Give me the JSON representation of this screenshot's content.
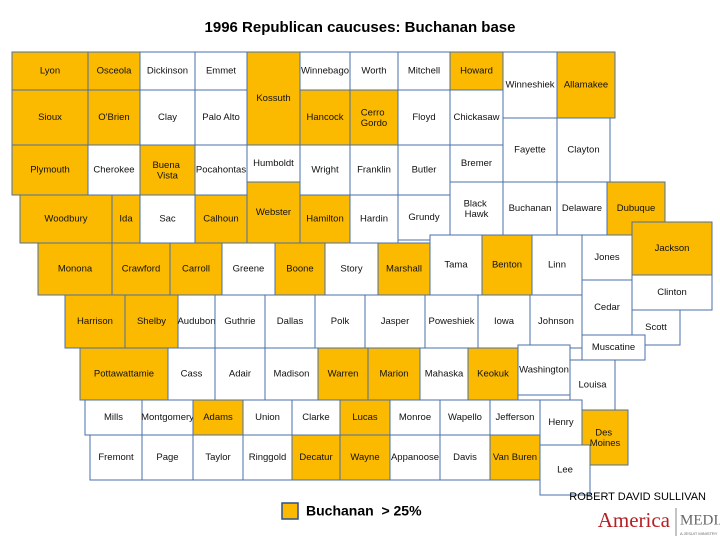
{
  "title": "1996 Republican caucuses: Buchanan base",
  "counties": [
    {
      "name": "Lyon",
      "buchanan": true
    },
    {
      "name": "Osceola",
      "buchanan": true
    },
    {
      "name": "Dickinson",
      "buchanan": false
    },
    {
      "name": "Emmet",
      "buchanan": false
    },
    {
      "name": "Kossuth",
      "buchanan": true
    },
    {
      "name": "Winnebago",
      "buchanan": false
    },
    {
      "name": "Worth",
      "buchanan": false
    },
    {
      "name": "Mitchell",
      "buchanan": false
    },
    {
      "name": "Howard",
      "buchanan": true
    },
    {
      "name": "Winneshiek",
      "buchanan": false
    },
    {
      "name": "Allamakee",
      "buchanan": true
    },
    {
      "name": "Sioux",
      "buchanan": true
    },
    {
      "name": "O'Brien",
      "buchanan": true
    },
    {
      "name": "Clay",
      "buchanan": false
    },
    {
      "name": "Palo Alto",
      "buchanan": false
    },
    {
      "name": "Hancock",
      "buchanan": true
    },
    {
      "name": "Cerro Gordo",
      "buchanan": true
    },
    {
      "name": "Floyd",
      "buchanan": false
    },
    {
      "name": "Chickasaw",
      "buchanan": false
    },
    {
      "name": "Fayette",
      "buchanan": false
    },
    {
      "name": "Clayton",
      "buchanan": false
    },
    {
      "name": "Plymouth",
      "buchanan": true
    },
    {
      "name": "Cherokee",
      "buchanan": false
    },
    {
      "name": "Buena Vista",
      "buchanan": true
    },
    {
      "name": "Pocahontas",
      "buchanan": false
    },
    {
      "name": "Humboldt",
      "buchanan": false
    },
    {
      "name": "Wright",
      "buchanan": false
    },
    {
      "name": "Franklin",
      "buchanan": false
    },
    {
      "name": "Butler",
      "buchanan": false
    },
    {
      "name": "Bremer",
      "buchanan": false
    },
    {
      "name": "Woodbury",
      "buchanan": true
    },
    {
      "name": "Ida",
      "buchanan": true
    },
    {
      "name": "Sac",
      "buchanan": false
    },
    {
      "name": "Calhoun",
      "buchanan": true
    },
    {
      "name": "Webster",
      "buchanan": true
    },
    {
      "name": "Hamilton",
      "buchanan": true
    },
    {
      "name": "Hardin",
      "buchanan": false
    },
    {
      "name": "Grundy",
      "buchanan": false
    },
    {
      "name": "Black Hawk",
      "buchanan": false
    },
    {
      "name": "Buchanan",
      "buchanan": false
    },
    {
      "name": "Delaware",
      "buchanan": false
    },
    {
      "name": "Dubuque",
      "buchanan": true
    },
    {
      "name": "Monona",
      "buchanan": true
    },
    {
      "name": "Crawford",
      "buchanan": true
    },
    {
      "name": "Carroll",
      "buchanan": true
    },
    {
      "name": "Greene",
      "buchanan": false
    },
    {
      "name": "Boone",
      "buchanan": true
    },
    {
      "name": "Story",
      "buchanan": false
    },
    {
      "name": "Marshall",
      "buchanan": true
    },
    {
      "name": "Tama",
      "buchanan": false
    },
    {
      "name": "Benton",
      "buchanan": true
    },
    {
      "name": "Linn",
      "buchanan": false
    },
    {
      "name": "Jones",
      "buchanan": false
    },
    {
      "name": "Jackson",
      "buchanan": true
    },
    {
      "name": "Harrison",
      "buchanan": true
    },
    {
      "name": "Shelby",
      "buchanan": true
    },
    {
      "name": "Audubon",
      "buchanan": false
    },
    {
      "name": "Guthrie",
      "buchanan": false
    },
    {
      "name": "Dallas",
      "buchanan": false
    },
    {
      "name": "Polk",
      "buchanan": false
    },
    {
      "name": "Jasper",
      "buchanan": false
    },
    {
      "name": "Poweshiek",
      "buchanan": false
    },
    {
      "name": "Iowa",
      "buchanan": false
    },
    {
      "name": "Johnson",
      "buchanan": false
    },
    {
      "name": "Cedar",
      "buchanan": false
    },
    {
      "name": "Clinton",
      "buchanan": false
    },
    {
      "name": "Scott",
      "buchanan": false
    },
    {
      "name": "Pottawattamie",
      "buchanan": true
    },
    {
      "name": "Cass",
      "buchanan": false
    },
    {
      "name": "Adair",
      "buchanan": false
    },
    {
      "name": "Madison",
      "buchanan": false
    },
    {
      "name": "Warren",
      "buchanan": true
    },
    {
      "name": "Marion",
      "buchanan": true
    },
    {
      "name": "Mahaska",
      "buchanan": false
    },
    {
      "name": "Keokuk",
      "buchanan": true
    },
    {
      "name": "Washington",
      "buchanan": false
    },
    {
      "name": "Muscatine",
      "buchanan": false
    },
    {
      "name": "Louisa",
      "buchanan": false
    },
    {
      "name": "Mills",
      "buchanan": false
    },
    {
      "name": "Montgomery",
      "buchanan": false
    },
    {
      "name": "Adams",
      "buchanan": true
    },
    {
      "name": "Union",
      "buchanan": false
    },
    {
      "name": "Clarke",
      "buchanan": false
    },
    {
      "name": "Lucas",
      "buchanan": true
    },
    {
      "name": "Monroe",
      "buchanan": false
    },
    {
      "name": "Wapello",
      "buchanan": false
    },
    {
      "name": "Jefferson",
      "buchanan": false
    },
    {
      "name": "Henry",
      "buchanan": false
    },
    {
      "name": "Des Moines",
      "buchanan": true
    },
    {
      "name": "Fremont",
      "buchanan": false
    },
    {
      "name": "Page",
      "buchanan": false
    },
    {
      "name": "Taylor",
      "buchanan": false
    },
    {
      "name": "Ringgold",
      "buchanan": false
    },
    {
      "name": "Decatur",
      "buchanan": true
    },
    {
      "name": "Wayne",
      "buchanan": true
    },
    {
      "name": "Appanoose",
      "buchanan": false
    },
    {
      "name": "Davis",
      "buchanan": false
    },
    {
      "name": "Van Buren",
      "buchanan": true
    },
    {
      "name": "Lee",
      "buchanan": false
    }
  ],
  "legend": {
    "label": "Buchanan  > 25%"
  },
  "credit": "ROBERT DAVID SULLIVAN",
  "logo": {
    "name": "America",
    "brand": "MEDIA",
    "tagline": "A JESUIT MINISTRY"
  }
}
